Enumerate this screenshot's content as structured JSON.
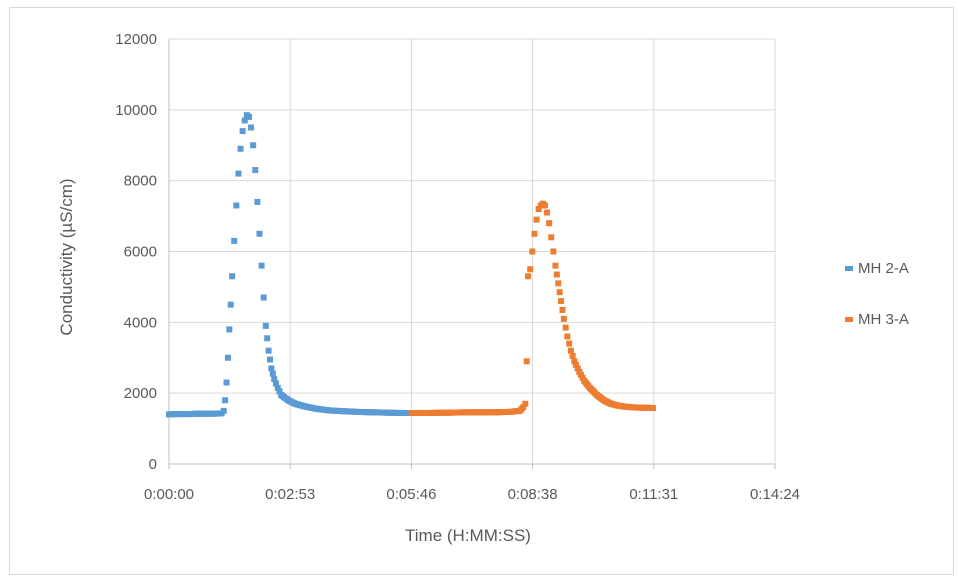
{
  "chart_data": {
    "type": "scatter",
    "title": "",
    "xlabel": "Time (H:MM:SS)",
    "ylabel": "Conductivity (µS/cm)",
    "x_unit": "seconds",
    "xlim": [
      0,
      864
    ],
    "ylim": [
      0,
      12000
    ],
    "x_tick_labels": [
      "0:00:00",
      "0:02:53",
      "0:05:46",
      "0:08:38",
      "0:11:31",
      "0:14:24"
    ],
    "y_tick_labels": [
      "0",
      "2000",
      "4000",
      "6000",
      "8000",
      "10000",
      "12000"
    ],
    "grid": true,
    "legend_position": "right",
    "series": [
      {
        "name": "MH 2-A",
        "color": "#5B9BD5",
        "points": [
          [
            0,
            1400
          ],
          [
            10,
            1410
          ],
          [
            20,
            1410
          ],
          [
            30,
            1410
          ],
          [
            40,
            1420
          ],
          [
            50,
            1420
          ],
          [
            60,
            1420
          ],
          [
            70,
            1425
          ],
          [
            75,
            1430
          ],
          [
            78,
            1500
          ],
          [
            80,
            1800
          ],
          [
            82,
            2300
          ],
          [
            84,
            3000
          ],
          [
            86,
            3800
          ],
          [
            88,
            4500
          ],
          [
            90,
            5300
          ],
          [
            93,
            6300
          ],
          [
            96,
            7300
          ],
          [
            99,
            8200
          ],
          [
            102,
            8900
          ],
          [
            105,
            9400
          ],
          [
            108,
            9700
          ],
          [
            111,
            9850
          ],
          [
            114,
            9800
          ],
          [
            117,
            9500
          ],
          [
            120,
            9000
          ],
          [
            123,
            8300
          ],
          [
            126,
            7400
          ],
          [
            129,
            6500
          ],
          [
            132,
            5600
          ],
          [
            135,
            4700
          ],
          [
            138,
            3900
          ],
          [
            142,
            3200
          ],
          [
            146,
            2700
          ],
          [
            150,
            2400
          ],
          [
            155,
            2150
          ],
          [
            160,
            1950
          ],
          [
            170,
            1800
          ],
          [
            180,
            1700
          ],
          [
            195,
            1620
          ],
          [
            210,
            1560
          ],
          [
            230,
            1510
          ],
          [
            250,
            1490
          ],
          [
            270,
            1470
          ],
          [
            290,
            1460
          ],
          [
            310,
            1450
          ],
          [
            330,
            1440
          ],
          [
            346,
            1440
          ]
        ]
      },
      {
        "name": "MH 3-A",
        "color": "#ED7D31",
        "points": [
          [
            346,
            1440
          ],
          [
            370,
            1440
          ],
          [
            400,
            1450
          ],
          [
            430,
            1460
          ],
          [
            460,
            1460
          ],
          [
            485,
            1470
          ],
          [
            500,
            1500
          ],
          [
            505,
            1600
          ],
          [
            508,
            1700
          ],
          [
            510,
            2900
          ],
          [
            512,
            5300
          ],
          [
            515,
            5500
          ],
          [
            518,
            6000
          ],
          [
            521,
            6500
          ],
          [
            524,
            6900
          ],
          [
            527,
            7200
          ],
          [
            530,
            7300
          ],
          [
            533,
            7350
          ],
          [
            536,
            7300
          ],
          [
            539,
            7100
          ],
          [
            542,
            6800
          ],
          [
            545,
            6400
          ],
          [
            548,
            6000
          ],
          [
            551,
            5600
          ],
          [
            555,
            5100
          ],
          [
            559,
            4600
          ],
          [
            563,
            4100
          ],
          [
            568,
            3600
          ],
          [
            573,
            3200
          ],
          [
            578,
            2900
          ],
          [
            585,
            2600
          ],
          [
            592,
            2350
          ],
          [
            600,
            2150
          ],
          [
            610,
            1950
          ],
          [
            620,
            1800
          ],
          [
            630,
            1700
          ],
          [
            640,
            1650
          ],
          [
            650,
            1620
          ],
          [
            660,
            1600
          ],
          [
            690,
            1580
          ]
        ]
      }
    ]
  }
}
